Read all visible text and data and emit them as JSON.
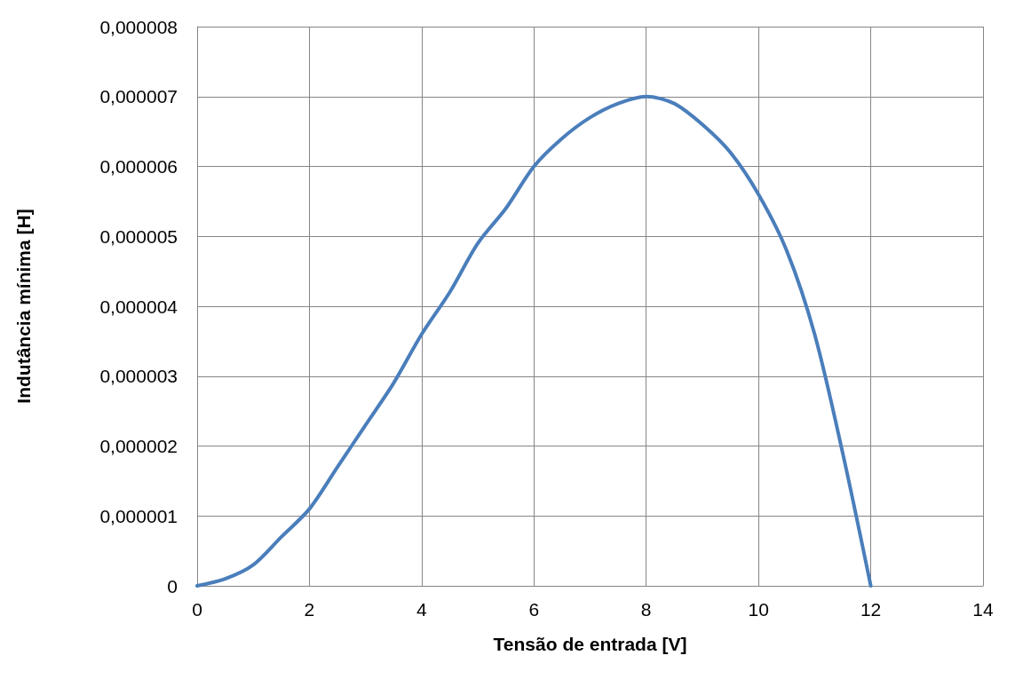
{
  "chart_data": {
    "type": "line",
    "xlabel": "Tensão de entrada [V]",
    "ylabel": "Indutância mínima [H]",
    "series": [
      {
        "color": "#4a7ebb",
        "x": [
          0,
          0.5,
          1,
          1.5,
          2,
          2.5,
          3,
          3.5,
          4,
          4.5,
          5,
          5.5,
          6,
          6.5,
          7,
          7.5,
          8,
          8.5,
          9,
          9.5,
          10,
          10.5,
          11,
          11.5,
          12
        ],
        "values": [
          0,
          1e-07,
          3e-07,
          7e-07,
          1.1e-06,
          1.7e-06,
          2.3e-06,
          2.9e-06,
          3.6e-06,
          4.2e-06,
          4.9e-06,
          5.4e-06,
          6e-06,
          6.4e-06,
          6.7e-06,
          6.9e-06,
          7e-06,
          6.9e-06,
          6.6e-06,
          6.2e-06,
          5.6e-06,
          4.8e-06,
          3.6e-06,
          1.9e-06,
          0
        ]
      }
    ],
    "xlim": [
      0,
      14
    ],
    "xticks": [
      0,
      2,
      4,
      6,
      8,
      10,
      12,
      14
    ],
    "ylim": [
      0,
      8e-06
    ],
    "yticks": [
      0,
      {
        "value": 1e-06,
        "label": "0,000001"
      },
      {
        "value": 2e-06,
        "label": "0,000002"
      },
      {
        "value": 3e-06,
        "label": "0,000003"
      },
      {
        "value": 4e-06,
        "label": "0,000004"
      },
      {
        "value": 5e-06,
        "label": "0,000005"
      },
      {
        "value": 6e-06,
        "label": "0,000006"
      },
      {
        "value": 7e-06,
        "label": "0,000007"
      },
      {
        "value": 8e-06,
        "label": "0,000008"
      }
    ],
    "grid": true,
    "marker": "none",
    "line_style": "solid"
  }
}
